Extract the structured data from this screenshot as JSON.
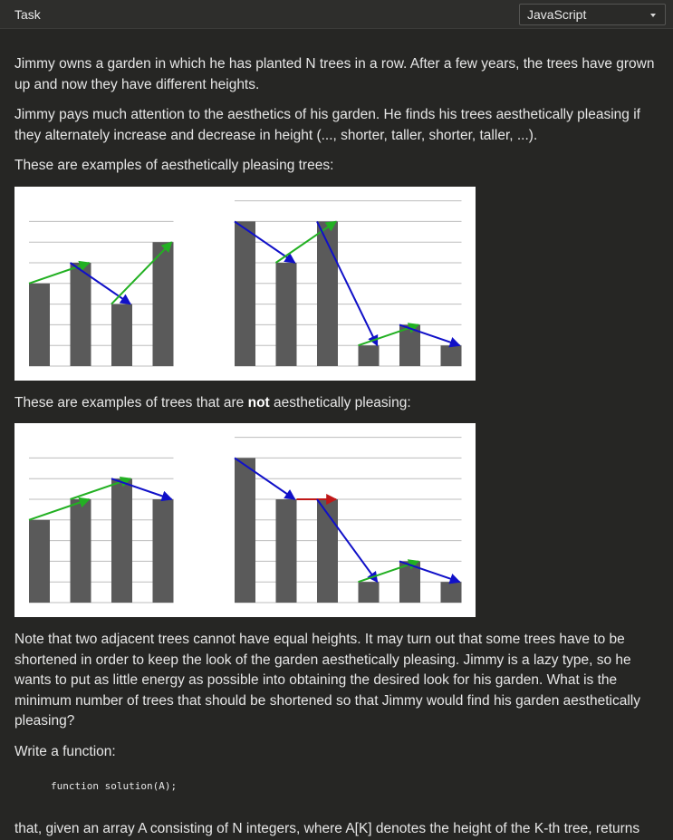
{
  "header": {
    "task_label": "Task",
    "language": "JavaScript",
    "language_icon": "chevron-down-icon"
  },
  "content": {
    "p1": "Jimmy owns a garden in which he has planted N trees in a row. After a few years, the trees have grown up and now they have different heights.",
    "p2": "Jimmy pays much attention to the aesthetics of his garden. He finds his trees aesthetically pleasing if they alternately increase and decrease in height (..., shorter, taller, shorter, taller, ...).",
    "p3": "These are examples of aesthetically pleasing trees:",
    "p4_before": "These are examples of trees that are ",
    "p4_bold": "not",
    "p4_after": " aesthetically pleasing:",
    "p5": "Note that two adjacent trees cannot have equal heights. It may turn out that some trees have to be shortened in order to keep the look of the garden aesthetically pleasing. Jimmy is a lazy type, so he wants to put as little energy as possible into obtaining the desired look for his garden. What is the minimum number of trees that should be shortened so that Jimmy would find his garden aesthetically pleasing?",
    "p6": "Write a function:",
    "code": "function solution(A);",
    "p7": "that, given an array A consisting of N integers, where A[K] denotes the height of the K-th tree, returns"
  },
  "figures": {
    "colors": {
      "bar": "#5a5a5a",
      "up": "#22b022",
      "down": "#1010c8",
      "equal": "#c01818",
      "grid": "#bdbdbd",
      "background": "#ffffff"
    },
    "pleasing": [
      {
        "heights": [
          4,
          5,
          3,
          6
        ]
      },
      {
        "heights": [
          7,
          5,
          7,
          1,
          2,
          1
        ]
      }
    ],
    "not_pleasing": [
      {
        "heights": [
          4,
          5,
          6,
          5
        ]
      },
      {
        "heights": [
          7,
          5,
          5,
          1,
          2,
          1
        ]
      }
    ]
  }
}
